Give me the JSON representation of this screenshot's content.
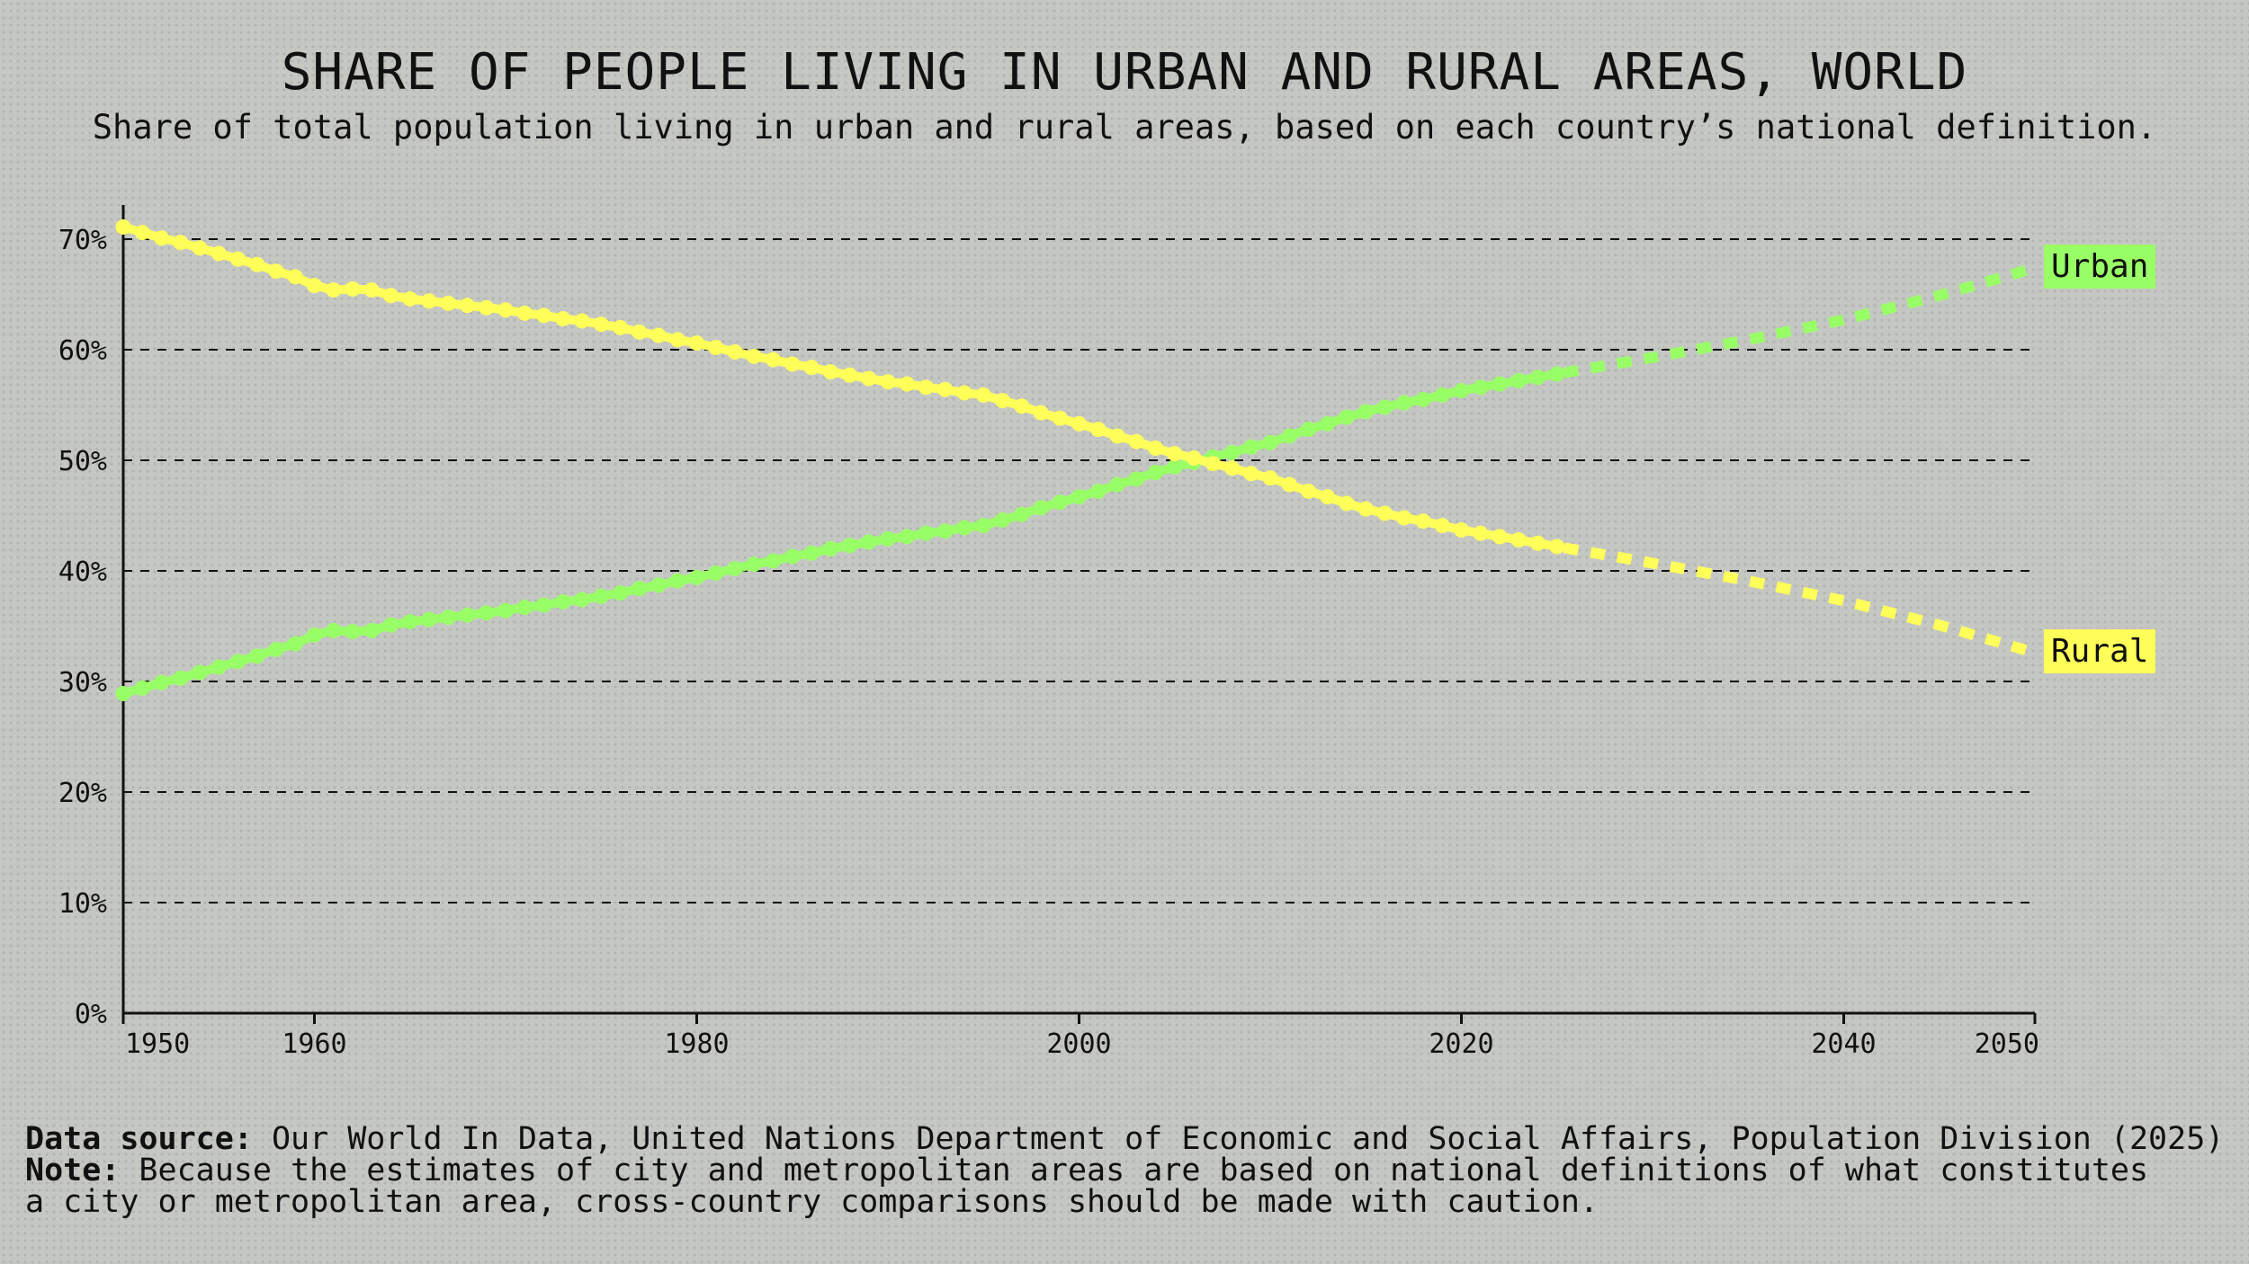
{
  "title": "SHARE OF PEOPLE LIVING IN URBAN AND RURAL AREAS, WORLD",
  "subtitle": "Share of total population living in urban and rural areas, based on each country’s national definition.",
  "footer": {
    "source_label": "Data source:",
    "source_text": " Our World In Data, United Nations Department of Economic and Social Affairs, Population Division (2025)",
    "note_label": "Note:",
    "note_line1": " Because the estimates of city and metropolitan areas are based on national definitions of what constitutes",
    "note_line2": "a city or metropolitan area, cross-country comparisons should be made with caution."
  },
  "chart_data": {
    "type": "line",
    "title": "SHARE OF PEOPLE LIVING IN URBAN AND RURAL AREAS, WORLD",
    "xlim": [
      1950,
      2050
    ],
    "ylim": [
      0,
      70
    ],
    "x_ticks": [
      1950,
      1960,
      1980,
      2000,
      2020,
      2040,
      2050
    ],
    "y_ticks": [
      "0%",
      "10%",
      "20%",
      "30%",
      "40%",
      "50%",
      "60%",
      "70%"
    ],
    "y_tick_values": [
      0,
      10,
      20,
      30,
      40,
      50,
      60,
      70
    ],
    "grid": "horizontal dashed",
    "legend": "inline labels at line ends (right)",
    "historical_years": [
      1950,
      2025
    ],
    "projection_years": [
      2025,
      2030,
      2035,
      2040,
      2045,
      2050
    ],
    "series": [
      {
        "name": "Urban",
        "color": "#99ff66",
        "values": [
          28.9,
          29.4,
          29.9,
          30.3,
          30.8,
          31.3,
          31.8,
          32.3,
          32.9,
          33.4,
          34.2,
          34.6,
          34.5,
          34.6,
          35.1,
          35.4,
          35.6,
          35.8,
          36.0,
          36.2,
          36.4,
          36.7,
          36.9,
          37.2,
          37.4,
          37.7,
          38.0,
          38.4,
          38.7,
          39.1,
          39.4,
          39.8,
          40.2,
          40.6,
          40.9,
          41.3,
          41.6,
          42.0,
          42.3,
          42.6,
          42.9,
          43.1,
          43.4,
          43.6,
          43.9,
          44.1,
          44.6,
          45.1,
          45.7,
          46.2,
          46.7,
          47.2,
          47.8,
          48.3,
          48.9,
          49.4,
          49.8,
          50.3,
          50.7,
          51.2,
          51.6,
          52.2,
          52.8,
          53.3,
          53.9,
          54.4,
          54.8,
          55.2,
          55.5,
          55.9,
          56.3,
          56.6,
          56.9,
          57.2,
          57.5,
          57.8
        ],
        "projection": [
          57.8,
          59.3,
          60.9,
          62.7,
          64.9,
          67.4
        ]
      },
      {
        "name": "Rural",
        "color": "#ffff5a",
        "values": [
          71.1,
          70.6,
          70.1,
          69.7,
          69.2,
          68.7,
          68.2,
          67.7,
          67.1,
          66.6,
          65.8,
          65.4,
          65.5,
          65.4,
          64.9,
          64.6,
          64.4,
          64.2,
          64.0,
          63.8,
          63.6,
          63.3,
          63.1,
          62.8,
          62.6,
          62.3,
          62.0,
          61.6,
          61.3,
          60.9,
          60.6,
          60.2,
          59.8,
          59.4,
          59.1,
          58.7,
          58.4,
          58.0,
          57.7,
          57.4,
          57.1,
          56.9,
          56.6,
          56.4,
          56.1,
          55.9,
          55.4,
          54.9,
          54.3,
          53.8,
          53.3,
          52.8,
          52.2,
          51.7,
          51.1,
          50.6,
          50.2,
          49.7,
          49.3,
          48.8,
          48.4,
          47.8,
          47.2,
          46.7,
          46.1,
          45.6,
          45.2,
          44.8,
          44.5,
          44.1,
          43.7,
          43.4,
          43.1,
          42.8,
          42.5,
          42.2
        ],
        "projection": [
          42.2,
          40.7,
          39.1,
          37.3,
          35.1,
          32.6
        ]
      }
    ]
  }
}
